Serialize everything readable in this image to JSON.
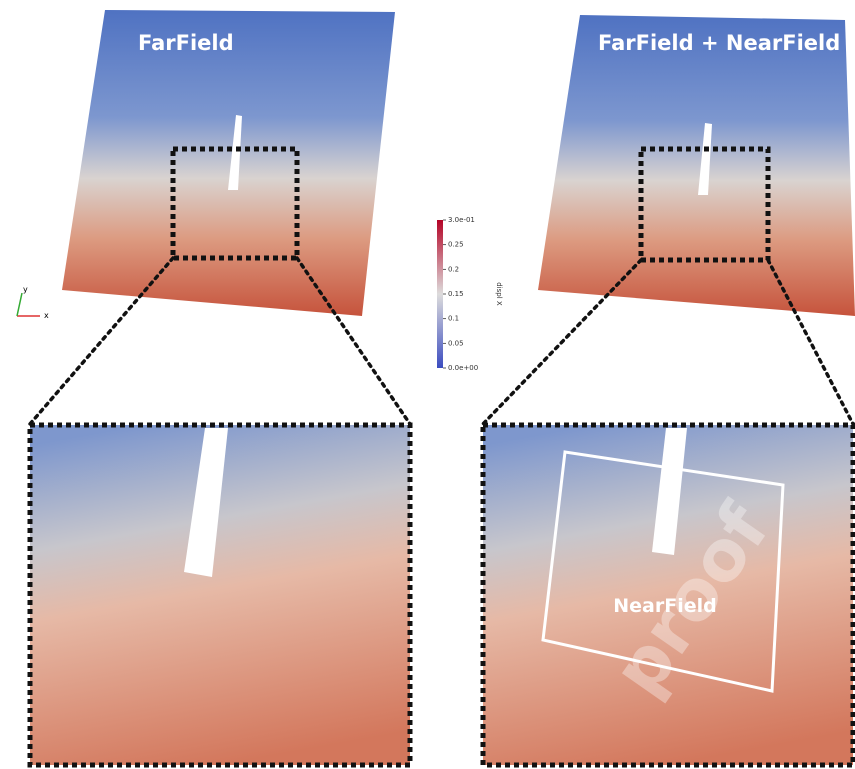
{
  "panels": {
    "far_title": "FarField",
    "combined_title": "FarField + NearField",
    "near_label": "NearField"
  },
  "colorbar": {
    "title": "displ X",
    "range": [
      0,
      0.3
    ],
    "ticks": [
      {
        "value": 0.3,
        "label": "3.0e-01"
      },
      0.25,
      0.2,
      0.15,
      0.1,
      0.05,
      {
        "value": 0,
        "label": "0.0e+00"
      }
    ]
  },
  "axes_triad": {
    "x": "x",
    "y": "y"
  },
  "watermark": "proof"
}
